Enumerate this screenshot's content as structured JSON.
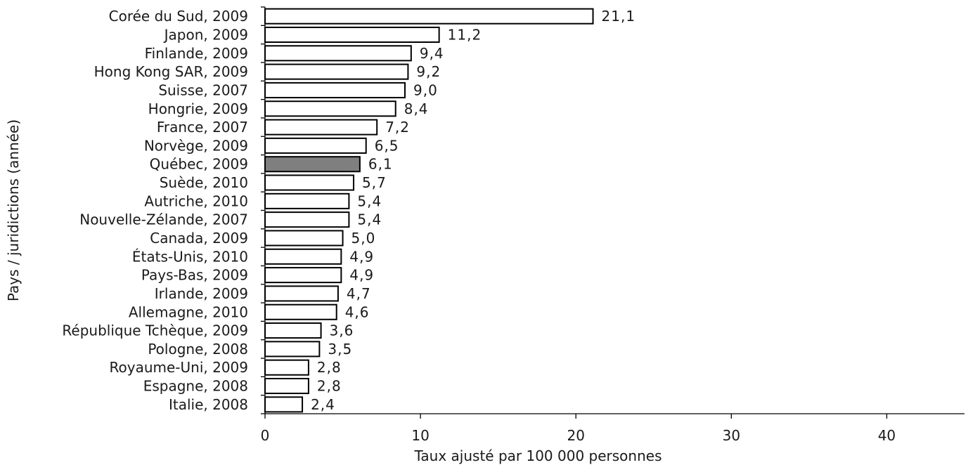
{
  "chart_data": {
    "type": "bar",
    "orientation": "horizontal",
    "title": "",
    "xlabel": "Taux ajusté par 100 000 personnes",
    "ylabel": "Pays / juridictions (année)",
    "xlim": [
      0,
      45
    ],
    "xticks": [
      0,
      10,
      20,
      30,
      40
    ],
    "grid": false,
    "legend": "none",
    "colors": {
      "bar_fill": "#ffffff",
      "bar_stroke": "#000000",
      "highlight_fill": "#7f7f7f"
    },
    "highlight": "Québec, 2009",
    "categories": [
      "Corée du Sud, 2009",
      "Japon, 2009",
      "Finlande, 2009",
      "Hong Kong SAR, 2009",
      "Suisse, 2007",
      "Hongrie, 2009",
      "France, 2007",
      "Norvège, 2009",
      "Québec, 2009",
      "Suède, 2010",
      "Autriche, 2010",
      "Nouvelle-Zélande, 2007",
      "Canada, 2009",
      "États-Unis, 2010",
      "Pays-Bas, 2009",
      "Irlande, 2009",
      "Allemagne, 2010",
      "République Tchèque, 2009",
      "Pologne, 2008",
      "Royaume-Uni, 2009",
      "Espagne, 2008",
      "Italie, 2008"
    ],
    "values": [
      21.1,
      11.2,
      9.4,
      9.2,
      9.0,
      8.4,
      7.2,
      6.5,
      6.1,
      5.7,
      5.4,
      5.4,
      5.0,
      4.9,
      4.9,
      4.7,
      4.6,
      3.6,
      3.5,
      2.8,
      2.8,
      2.4
    ],
    "value_labels": [
      "21,1",
      "11,2",
      "9,4",
      "9,2",
      "9,0",
      "8,4",
      "7,2",
      "6,5",
      "6,1",
      "5,7",
      "5,4",
      "5,4",
      "5,0",
      "4,9",
      "4,9",
      "4,7",
      "4,6",
      "3,6",
      "3,5",
      "2,8",
      "2,8",
      "2,4"
    ]
  }
}
